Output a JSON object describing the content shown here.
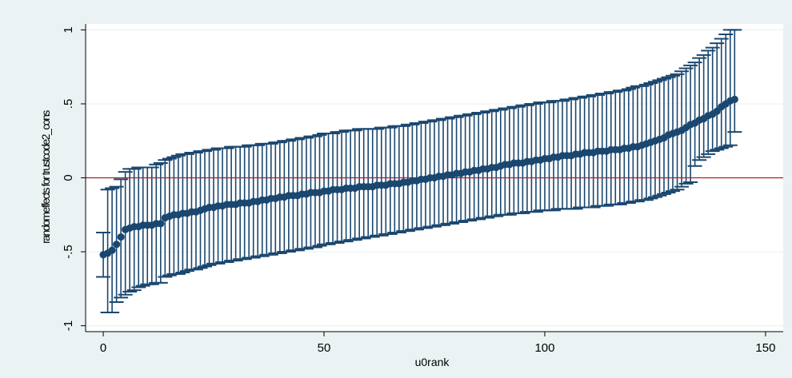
{
  "chart_data": {
    "type": "scatter",
    "subtype": "caterpillar-errorbar",
    "title": "",
    "xlabel": "u0rank",
    "ylabel": "randomeffects for trustcode2_cons",
    "xlim": [
      -4,
      154
    ],
    "ylim": [
      -1.04,
      1.04
    ],
    "x_ticks": [
      0,
      50,
      100,
      150
    ],
    "x_tick_labels": [
      "0",
      "50",
      "100",
      "150"
    ],
    "y_ticks": [
      -1,
      -0.5,
      0,
      0.5,
      1
    ],
    "y_tick_labels": [
      "-1",
      "-.5",
      "0",
      ".5",
      "1"
    ],
    "grid": true,
    "reference_line": {
      "y": 0,
      "color": "#b01c2e"
    },
    "colors": {
      "series": "#1a476f",
      "plot_background": "#ffffff",
      "outer_background": "#eaf2f3",
      "grid": "#eaf2f3"
    },
    "n_points": 144,
    "x": [
      0,
      1,
      2,
      3,
      4,
      5,
      6,
      7,
      8,
      9,
      10,
      11,
      12,
      13,
      14,
      15,
      16,
      17,
      18,
      19,
      20,
      21,
      22,
      23,
      24,
      25,
      26,
      27,
      28,
      29,
      30,
      31,
      32,
      33,
      34,
      35,
      36,
      37,
      38,
      39,
      40,
      41,
      42,
      43,
      44,
      45,
      46,
      47,
      48,
      49,
      50,
      51,
      52,
      53,
      54,
      55,
      56,
      57,
      58,
      59,
      60,
      61,
      62,
      63,
      64,
      65,
      66,
      67,
      68,
      69,
      70,
      71,
      72,
      73,
      74,
      75,
      76,
      77,
      78,
      79,
      80,
      81,
      82,
      83,
      84,
      85,
      86,
      87,
      88,
      89,
      90,
      91,
      92,
      93,
      94,
      95,
      96,
      97,
      98,
      99,
      100,
      101,
      102,
      103,
      104,
      105,
      106,
      107,
      108,
      109,
      110,
      111,
      112,
      113,
      114,
      115,
      116,
      117,
      118,
      119,
      120,
      121,
      122,
      123,
      124,
      125,
      126,
      127,
      128,
      129,
      130,
      131,
      132,
      133,
      134,
      135,
      136,
      137,
      138,
      139,
      140,
      141,
      142,
      143
    ],
    "y": [
      -0.52,
      -0.51,
      -0.49,
      -0.45,
      -0.4,
      -0.35,
      -0.34,
      -0.33,
      -0.33,
      -0.32,
      -0.32,
      -0.32,
      -0.31,
      -0.31,
      -0.27,
      -0.26,
      -0.25,
      -0.25,
      -0.24,
      -0.24,
      -0.23,
      -0.23,
      -0.22,
      -0.21,
      -0.2,
      -0.2,
      -0.19,
      -0.19,
      -0.18,
      -0.18,
      -0.18,
      -0.17,
      -0.17,
      -0.17,
      -0.16,
      -0.16,
      -0.15,
      -0.15,
      -0.14,
      -0.14,
      -0.13,
      -0.13,
      -0.12,
      -0.12,
      -0.12,
      -0.11,
      -0.11,
      -0.1,
      -0.1,
      -0.1,
      -0.09,
      -0.09,
      -0.08,
      -0.08,
      -0.08,
      -0.07,
      -0.07,
      -0.07,
      -0.06,
      -0.06,
      -0.06,
      -0.06,
      -0.05,
      -0.05,
      -0.05,
      -0.04,
      -0.04,
      -0.04,
      -0.03,
      -0.03,
      -0.02,
      -0.02,
      -0.01,
      -0.01,
      0.0,
      0.0,
      0.01,
      0.01,
      0.02,
      0.02,
      0.03,
      0.03,
      0.04,
      0.04,
      0.05,
      0.05,
      0.06,
      0.06,
      0.07,
      0.07,
      0.08,
      0.09,
      0.09,
      0.1,
      0.1,
      0.1,
      0.11,
      0.11,
      0.12,
      0.12,
      0.13,
      0.13,
      0.14,
      0.14,
      0.15,
      0.15,
      0.15,
      0.16,
      0.16,
      0.17,
      0.17,
      0.17,
      0.18,
      0.18,
      0.18,
      0.19,
      0.19,
      0.19,
      0.2,
      0.2,
      0.21,
      0.21,
      0.22,
      0.23,
      0.24,
      0.25,
      0.26,
      0.27,
      0.29,
      0.3,
      0.31,
      0.32,
      0.34,
      0.36,
      0.37,
      0.39,
      0.4,
      0.42,
      0.43,
      0.45,
      0.48,
      0.5,
      0.52,
      0.53
    ],
    "y_lower": [
      -0.67,
      -0.91,
      -0.91,
      -0.84,
      -0.81,
      -0.79,
      -0.77,
      -0.76,
      -0.74,
      -0.73,
      -0.72,
      -0.72,
      -0.71,
      -0.71,
      -0.67,
      -0.66,
      -0.65,
      -0.65,
      -0.64,
      -0.63,
      -0.62,
      -0.62,
      -0.61,
      -0.6,
      -0.59,
      -0.58,
      -0.58,
      -0.57,
      -0.57,
      -0.56,
      -0.56,
      -0.55,
      -0.55,
      -0.54,
      -0.54,
      -0.53,
      -0.53,
      -0.52,
      -0.52,
      -0.51,
      -0.51,
      -0.5,
      -0.5,
      -0.49,
      -0.49,
      -0.48,
      -0.48,
      -0.47,
      -0.47,
      -0.46,
      -0.45,
      -0.45,
      -0.44,
      -0.44,
      -0.43,
      -0.43,
      -0.42,
      -0.42,
      -0.41,
      -0.41,
      -0.4,
      -0.4,
      -0.39,
      -0.39,
      -0.38,
      -0.38,
      -0.37,
      -0.37,
      -0.36,
      -0.36,
      -0.35,
      -0.35,
      -0.34,
      -0.34,
      -0.33,
      -0.33,
      -0.32,
      -0.32,
      -0.31,
      -0.31,
      -0.3,
      -0.3,
      -0.29,
      -0.29,
      -0.28,
      -0.28,
      -0.27,
      -0.27,
      -0.26,
      -0.26,
      -0.25,
      -0.25,
      -0.25,
      -0.24,
      -0.24,
      -0.24,
      -0.23,
      -0.23,
      -0.23,
      -0.22,
      -0.22,
      -0.22,
      -0.22,
      -0.21,
      -0.21,
      -0.21,
      -0.21,
      -0.21,
      -0.2,
      -0.2,
      -0.2,
      -0.2,
      -0.19,
      -0.19,
      -0.19,
      -0.18,
      -0.18,
      -0.18,
      -0.17,
      -0.17,
      -0.16,
      -0.16,
      -0.15,
      -0.15,
      -0.14,
      -0.13,
      -0.12,
      -0.11,
      -0.1,
      -0.09,
      -0.08,
      -0.06,
      -0.04,
      -0.03,
      0.08,
      0.12,
      0.14,
      0.16,
      0.18,
      0.19,
      0.2,
      0.21,
      0.22,
      0.31
    ],
    "y_upper": [
      -0.37,
      -0.08,
      -0.07,
      -0.06,
      -0.01,
      0.04,
      0.06,
      0.06,
      0.07,
      0.07,
      0.07,
      0.07,
      0.09,
      0.1,
      0.12,
      0.13,
      0.14,
      0.15,
      0.16,
      0.16,
      0.17,
      0.17,
      0.18,
      0.18,
      0.19,
      0.19,
      0.2,
      0.2,
      0.2,
      0.21,
      0.21,
      0.21,
      0.21,
      0.22,
      0.22,
      0.22,
      0.23,
      0.23,
      0.23,
      0.24,
      0.24,
      0.25,
      0.25,
      0.26,
      0.26,
      0.27,
      0.27,
      0.28,
      0.28,
      0.29,
      0.3,
      0.3,
      0.3,
      0.31,
      0.31,
      0.32,
      0.32,
      0.32,
      0.33,
      0.33,
      0.33,
      0.33,
      0.33,
      0.34,
      0.34,
      0.34,
      0.35,
      0.35,
      0.35,
      0.36,
      0.36,
      0.37,
      0.37,
      0.38,
      0.38,
      0.39,
      0.39,
      0.4,
      0.4,
      0.41,
      0.41,
      0.42,
      0.42,
      0.43,
      0.43,
      0.44,
      0.44,
      0.45,
      0.45,
      0.46,
      0.46,
      0.47,
      0.47,
      0.48,
      0.48,
      0.49,
      0.49,
      0.5,
      0.5,
      0.51,
      0.51,
      0.51,
      0.52,
      0.52,
      0.52,
      0.53,
      0.53,
      0.54,
      0.54,
      0.55,
      0.55,
      0.56,
      0.56,
      0.57,
      0.57,
      0.58,
      0.58,
      0.59,
      0.59,
      0.6,
      0.61,
      0.62,
      0.62,
      0.63,
      0.64,
      0.65,
      0.66,
      0.67,
      0.68,
      0.69,
      0.7,
      0.72,
      0.74,
      0.76,
      0.78,
      0.81,
      0.83,
      0.86,
      0.88,
      0.91,
      0.94,
      0.97,
      1.0,
      1.0
    ]
  }
}
